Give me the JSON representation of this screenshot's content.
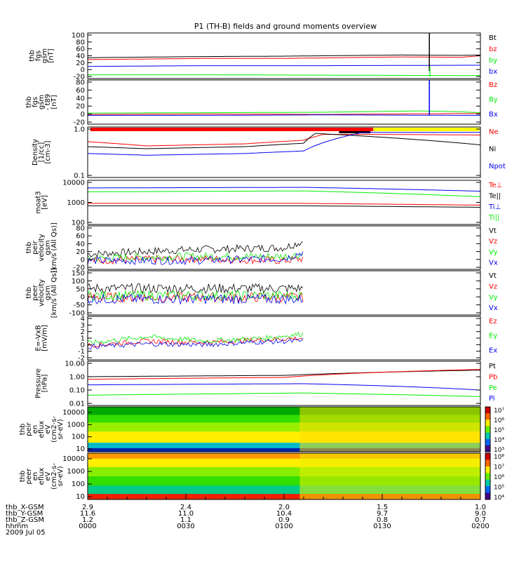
{
  "title": "P1 (TH-B) fields and ground moments overview",
  "colors": {
    "black": "#000000",
    "red": "#ff0000",
    "green": "#00ee00",
    "blue": "#0000ee",
    "yellow": "#ffff00"
  },
  "chart_data": [
    {
      "type": "line",
      "ylabel": [
        "thb",
        "fgs",
        "gsm",
        "[nT]"
      ],
      "yticks": [
        "100",
        "80",
        "60",
        "40",
        "20",
        "0",
        "-20"
      ],
      "ylim": [
        -20,
        100
      ],
      "series": [
        {
          "name": "Bt",
          "color": "#000000",
          "points": [
            [
              0,
              35
            ],
            [
              30,
              38
            ],
            [
              50,
              39
            ],
            [
              80,
              42
            ],
            [
              95,
              41
            ],
            [
              100,
              42
            ]
          ]
        },
        {
          "name": "bz",
          "color": "#ff0000",
          "points": [
            [
              0,
              30
            ],
            [
              30,
              33
            ],
            [
              50,
              33
            ],
            [
              80,
              37
            ],
            [
              95,
              36
            ],
            [
              100,
              40
            ]
          ]
        },
        {
          "name": "by",
          "color": "#00ee00",
          "points": [
            [
              0,
              -10
            ],
            [
              30,
              -10
            ],
            [
              60,
              -11
            ],
            [
              95,
              -12
            ],
            [
              100,
              -12
            ]
          ]
        },
        {
          "name": "bx",
          "color": "#0000ee",
          "points": [
            [
              0,
              12
            ],
            [
              30,
              14
            ],
            [
              60,
              14
            ],
            [
              95,
              15
            ],
            [
              100,
              15
            ]
          ]
        }
      ]
    },
    {
      "type": "line",
      "ylabel": [
        "thb",
        "fgs",
        "gsm",
        "- t89",
        "[nT]"
      ],
      "yticks": [
        "80",
        "60",
        "40",
        "20",
        "0",
        "-20"
      ],
      "ylim": [
        -20,
        80
      ],
      "series": [
        {
          "name": "Bz",
          "color": "#ff0000",
          "points": [
            [
              0,
              2
            ],
            [
              30,
              3
            ],
            [
              60,
              2
            ],
            [
              95,
              4
            ],
            [
              100,
              4
            ]
          ]
        },
        {
          "name": "By",
          "color": "#00ee00",
          "points": [
            [
              0,
              5
            ],
            [
              30,
              6
            ],
            [
              60,
              7
            ],
            [
              85,
              10
            ],
            [
              95,
              8
            ],
            [
              100,
              6
            ]
          ]
        },
        {
          "name": "Bx",
          "color": "#0000ee",
          "points": [
            [
              0,
              0
            ],
            [
              30,
              0
            ],
            [
              60,
              1
            ],
            [
              95,
              0
            ],
            [
              100,
              0
            ]
          ]
        }
      ]
    },
    {
      "type": "line",
      "ylabel": [
        "Density",
        "[1/cc]",
        "[cm-3]"
      ],
      "yticks": [
        "1.0",
        "0.1"
      ],
      "ylim": [
        0.1,
        1.4
      ],
      "log": true,
      "series": [
        {
          "name": "Ne",
          "color": "#ff0000",
          "points": [
            [
              0,
              0.65
            ],
            [
              15,
              0.52
            ],
            [
              40,
              0.58
            ],
            [
              55,
              0.7
            ],
            [
              60,
              0.95
            ],
            [
              75,
              0.95
            ],
            [
              100,
              0.92
            ]
          ]
        },
        {
          "name": "Ni",
          "color": "#000000",
          "points": [
            [
              0,
              0.5
            ],
            [
              15,
              0.45
            ],
            [
              40,
              0.5
            ],
            [
              55,
              0.6
            ],
            [
              58,
              1.0
            ],
            [
              100,
              0.55
            ]
          ]
        },
        {
          "name": "Npot",
          "color": "#0000ee",
          "points": [
            [
              0,
              0.35
            ],
            [
              15,
              0.32
            ],
            [
              40,
              0.35
            ],
            [
              55,
              0.4
            ],
            [
              70,
              1.05
            ],
            [
              100,
              1.05
            ]
          ]
        }
      ]
    },
    {
      "type": "line",
      "ylabel": [
        "moat3",
        "[eV]"
      ],
      "yticks": [
        "10000",
        "1000",
        "100"
      ],
      "ylim": [
        100,
        10000
      ],
      "log": true,
      "series": [
        {
          "name": "Te⊥",
          "color": "#ff0000",
          "points": [
            [
              0,
              900
            ],
            [
              55,
              900
            ],
            [
              100,
              750
            ]
          ]
        },
        {
          "name": "Te||",
          "color": "#000000",
          "points": [
            [
              0,
              700
            ],
            [
              55,
              700
            ],
            [
              100,
              600
            ]
          ]
        },
        {
          "name": "Ti⊥",
          "color": "#0000ee",
          "points": [
            [
              0,
              4500
            ],
            [
              55,
              4800
            ],
            [
              100,
              3200
            ]
          ]
        },
        {
          "name": "Ti||",
          "color": "#00ee00",
          "points": [
            [
              0,
              3000
            ],
            [
              55,
              3300
            ],
            [
              100,
              1800
            ]
          ]
        }
      ]
    },
    {
      "type": "line",
      "ylabel": [
        "thb",
        "peir",
        "velocity",
        "gsm",
        "[km/s (All Qs)]"
      ],
      "yticks": [
        "80",
        "60",
        "40",
        "20",
        "0",
        "-20"
      ],
      "ylim": [
        -20,
        80
      ],
      "series": [
        {
          "name": "Vt",
          "color": "#000000",
          "points": [
            [
              0,
              15
            ],
            [
              25,
              25
            ],
            [
              50,
              30
            ],
            [
              55,
              45
            ]
          ]
        },
        {
          "name": "Vz",
          "color": "#ff0000",
          "points": [
            [
              0,
              0
            ],
            [
              25,
              5
            ],
            [
              50,
              0
            ],
            [
              55,
              5
            ]
          ]
        },
        {
          "name": "Vy",
          "color": "#00ee00",
          "points": [
            [
              0,
              5
            ],
            [
              25,
              10
            ],
            [
              50,
              10
            ],
            [
              55,
              15
            ]
          ]
        },
        {
          "name": "Vx",
          "color": "#0000ee",
          "points": [
            [
              0,
              0
            ],
            [
              25,
              0
            ],
            [
              50,
              5
            ],
            [
              55,
              20
            ]
          ]
        }
      ]
    },
    {
      "type": "line",
      "ylabel": [
        "thb",
        "peer",
        "velocity",
        "gsm",
        "[km/s (All Qs)]"
      ],
      "yticks": [
        "150",
        "100",
        "50",
        "0",
        "-50",
        "-100"
      ],
      "ylim": [
        -100,
        150
      ],
      "series": [
        {
          "name": "Vt",
          "color": "#000000",
          "points": [
            [
              0,
              50
            ],
            [
              25,
              50
            ],
            [
              55,
              50
            ]
          ]
        },
        {
          "name": "Vz",
          "color": "#ff0000",
          "points": [
            [
              0,
              0
            ],
            [
              25,
              0
            ],
            [
              55,
              0
            ]
          ]
        },
        {
          "name": "Vy",
          "color": "#00ee00",
          "points": [
            [
              0,
              10
            ],
            [
              25,
              10
            ],
            [
              55,
              10
            ]
          ]
        },
        {
          "name": "Vx",
          "color": "#0000ee",
          "points": [
            [
              0,
              -10
            ],
            [
              25,
              -10
            ],
            [
              55,
              -10
            ]
          ]
        }
      ]
    },
    {
      "type": "line",
      "ylabel": [
        "E=-VxB",
        "[mV/m]"
      ],
      "yticks": [
        "4",
        "3",
        "2",
        "1",
        "0",
        "-1",
        "-2"
      ],
      "ylim": [
        -2,
        4
      ],
      "series": [
        {
          "name": "Ez",
          "color": "#ff0000",
          "points": [
            [
              0,
              0
            ],
            [
              15,
              0.6
            ],
            [
              30,
              0.4
            ],
            [
              45,
              0.8
            ],
            [
              55,
              1
            ]
          ]
        },
        {
          "name": "Ey",
          "color": "#00ee00",
          "points": [
            [
              0,
              0.3
            ],
            [
              15,
              1.2
            ],
            [
              30,
              0.6
            ],
            [
              45,
              1.0
            ],
            [
              55,
              1.6
            ]
          ]
        },
        {
          "name": "Ex",
          "color": "#0000ee",
          "points": [
            [
              0,
              -0.2
            ],
            [
              15,
              0.2
            ],
            [
              30,
              0.1
            ],
            [
              45,
              0.5
            ],
            [
              55,
              0.6
            ]
          ]
        }
      ]
    },
    {
      "type": "line",
      "ylabel": [
        "Pressure",
        "[nPa]"
      ],
      "yticks": [
        "10.00",
        "1.00",
        "0.10",
        "0.01"
      ],
      "ylim": [
        0.01,
        10
      ],
      "log": true,
      "series": [
        {
          "name": "Pt",
          "color": "#000000",
          "points": [
            [
              0,
              0.9
            ],
            [
              50,
              1.1
            ],
            [
              100,
              2.5
            ]
          ]
        },
        {
          "name": "Pb",
          "color": "#ff0000",
          "points": [
            [
              0,
              0.6
            ],
            [
              50,
              0.8
            ],
            [
              100,
              2.8
            ]
          ]
        },
        {
          "name": "Pe",
          "color": "#00ee00",
          "points": [
            [
              0,
              0.05
            ],
            [
              55,
              0.07
            ],
            [
              100,
              0.04
            ]
          ]
        },
        {
          "name": "Pi",
          "color": "#0000ee",
          "points": [
            [
              0,
              0.25
            ],
            [
              55,
              0.3
            ],
            [
              100,
              0.11
            ]
          ]
        }
      ]
    },
    {
      "type": "heatmap",
      "ylabel": [
        "thb",
        "peir",
        "en",
        "eflux",
        "eV",
        "(cm2-s-",
        "sr-eV)"
      ],
      "yticks": [
        "10000",
        "1000",
        "100",
        "10"
      ],
      "colorbar": [
        "10⁷",
        "10⁶",
        "10⁵",
        "10⁴",
        "10³"
      ]
    },
    {
      "type": "heatmap",
      "ylabel": [
        "thb",
        "peer",
        "en",
        "eflux",
        "eV",
        "(cm2-s-",
        "sr-eV)"
      ],
      "yticks": [
        "10000",
        "1000",
        "100",
        "10"
      ],
      "colorbar": [
        "10⁸",
        "10⁷",
        "10⁶",
        "10⁵",
        "10⁴"
      ]
    }
  ],
  "xaxis": {
    "rows": [
      {
        "label": "thb_X-GSM",
        "values": [
          "2.9",
          "2.4",
          "2.0",
          "1.5",
          "1.0"
        ]
      },
      {
        "label": "thb_Y-GSM",
        "values": [
          "11.6",
          "11.0",
          "10.4",
          "9.7",
          "9.0"
        ]
      },
      {
        "label": "thb_Z-GSM",
        "values": [
          "1.2",
          "1.1",
          "0.9",
          "0.8",
          "0.7"
        ]
      },
      {
        "label": "hhmm",
        "values": [
          "0000",
          "0030",
          "0100",
          "0130",
          "0200"
        ]
      }
    ],
    "date": "2009 Jul 05"
  }
}
